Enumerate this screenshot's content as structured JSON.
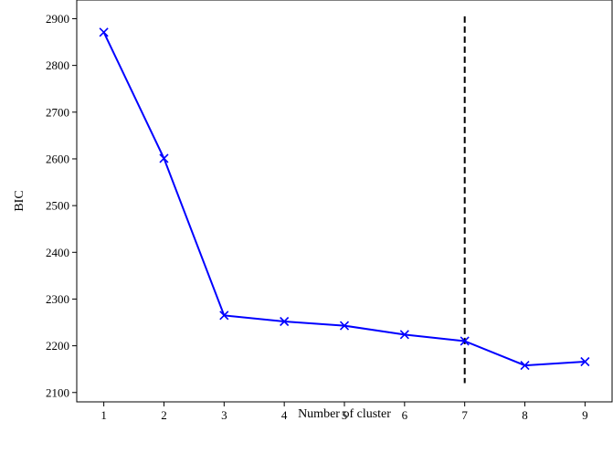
{
  "chart_data": {
    "type": "line",
    "title": "",
    "xlabel": "Number of cluster",
    "ylabel": "BIC",
    "x": [
      1,
      2,
      3,
      4,
      5,
      6,
      7,
      8,
      9
    ],
    "series": [
      {
        "values": [
          2871,
          2601,
          2265,
          2252,
          2243,
          2224,
          2210,
          2158,
          2166
        ],
        "color": "#0000ff",
        "marker": "x"
      }
    ],
    "xticks": [
      1,
      2,
      3,
      4,
      5,
      6,
      7,
      8,
      9
    ],
    "yticks": [
      2100,
      2200,
      2300,
      2400,
      2500,
      2600,
      2700,
      2800,
      2900
    ],
    "xlim": [
      0.55,
      9.45
    ],
    "ylim": [
      2080,
      2940
    ],
    "vline": {
      "x": 7,
      "ymin": 2120,
      "ymax": 2905,
      "style": "dashed",
      "color": "#000000"
    },
    "grid": false,
    "legend": "none"
  }
}
